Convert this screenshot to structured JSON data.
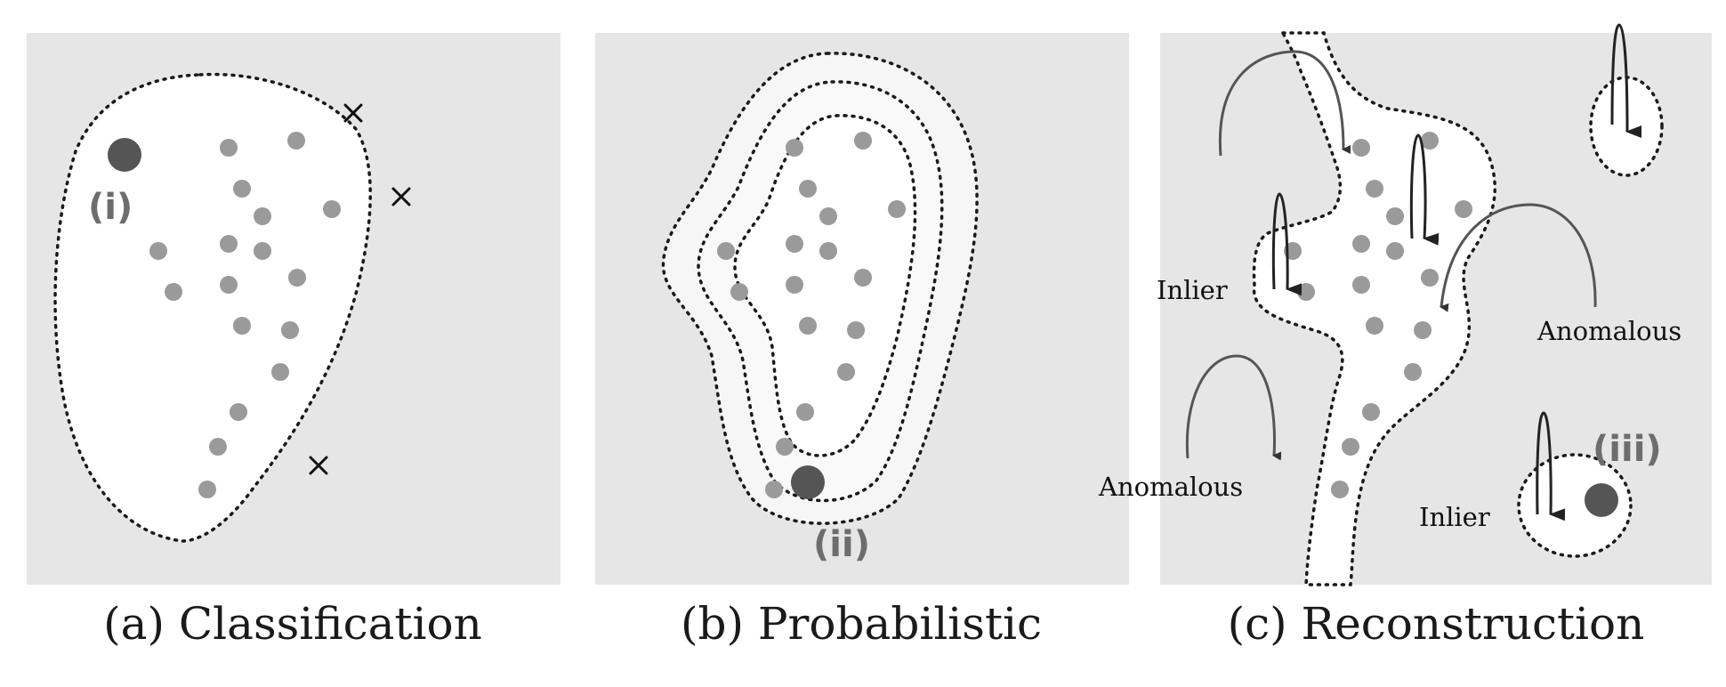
{
  "panels": {
    "a": {
      "caption": "(a) Classification",
      "marker": "(i)"
    },
    "b": {
      "caption": "(b) Probabilistic",
      "marker": "(ii)"
    },
    "c": {
      "caption": "(c) Reconstruction",
      "marker": "(iii)",
      "inlier_left": "Inlier",
      "inlier_right": "Inlier",
      "anomalous_right": "Anomalous",
      "anomalous_left": "Anomalous"
    }
  },
  "colors": {
    "panel_bg": "#e6e6e6",
    "region_fill": "#ffffff",
    "point": "#9a9a9a",
    "highlight_point": "#555555",
    "boundary": "#1a1a1a"
  }
}
